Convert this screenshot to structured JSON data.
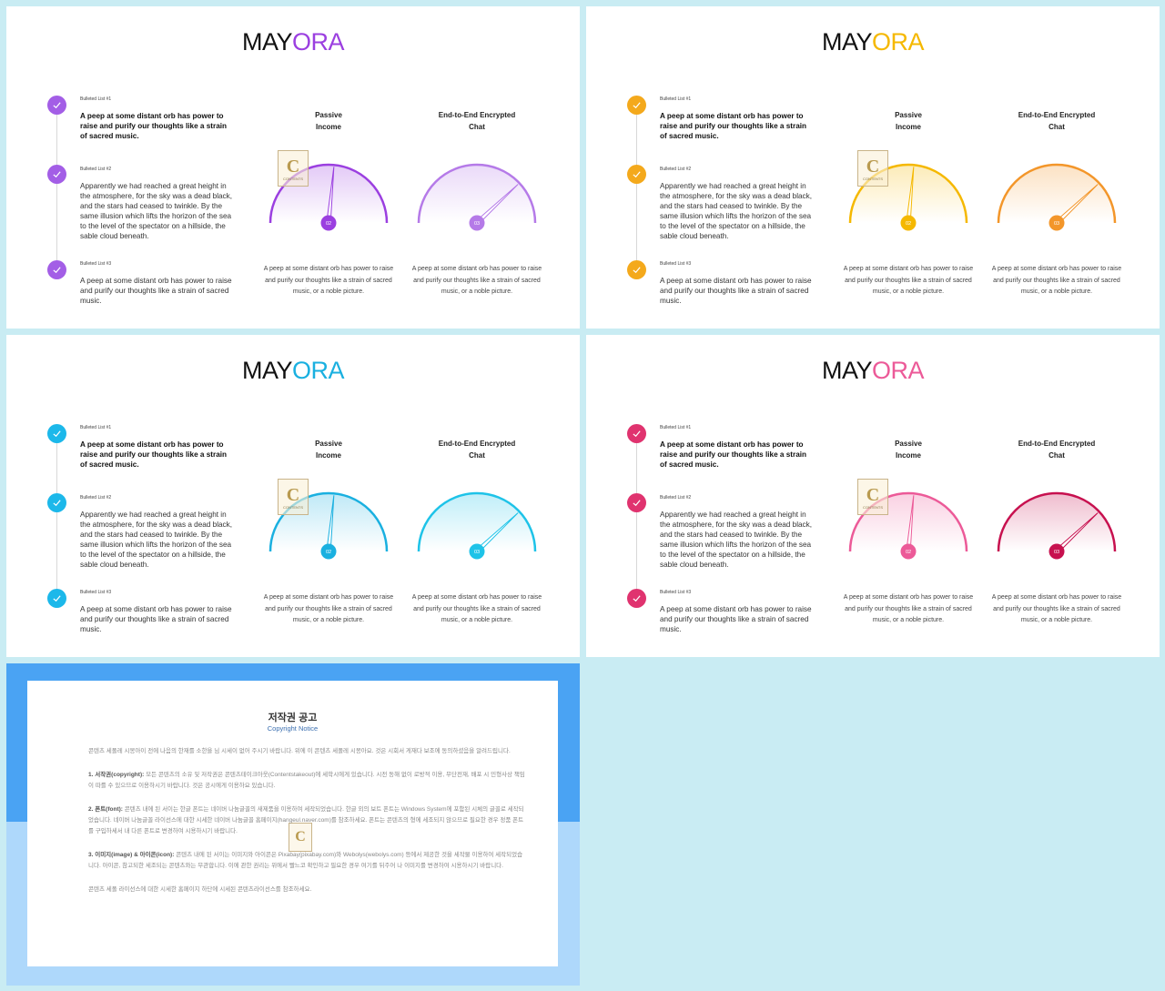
{
  "slides": [
    {
      "title_a": "MAY",
      "title_b": "ORA",
      "accent": "#9b3fe0",
      "accent2": "#b57ae8",
      "check_bg": "#a35ee6",
      "items": [
        {
          "label": "Bulleted List #1",
          "text": "A peep at some distant orb has power to raise and purify our thoughts like a strain of sacred music."
        },
        {
          "label": "Bulleted List #2",
          "text": "Apparently we had reached a great height in the atmosphere, for the sky was a dead black, and the stars had ceased to twinkle. By the same illusion which lifts the horizon of the sea to the level of the spectator on a hillside, the sable cloud beneath."
        },
        {
          "label": "Bulleted List #3",
          "text": "A peep at some distant orb has power to raise and purify our thoughts like a strain of sacred music."
        }
      ],
      "gauges": [
        {
          "title_line1": "Passive",
          "title_line2": "Income",
          "badge": "02",
          "value": 0.53,
          "caption": "A peep at some distant orb has power to raise and purify our thoughts like a strain of sacred music, or a noble picture."
        },
        {
          "title_line1": "End-to-End Encrypted",
          "title_line2": "Chat",
          "badge": "03",
          "value": 0.76,
          "caption": "A peep at some distant orb has power to raise and purify our thoughts like a strain of sacred music, or a noble picture."
        }
      ]
    },
    {
      "title_a": "MAY",
      "title_b": "ORA",
      "accent": "#f5b800",
      "accent2": "#f3962a",
      "check_bg": "#f4a91c",
      "items": [
        {
          "label": "Bulleted List #1",
          "text": "A peep at some distant orb has power to raise and purify our thoughts like a strain of sacred music."
        },
        {
          "label": "Bulleted List #2",
          "text": "Apparently we had reached a great height in the atmosphere, for the sky was a dead black, and the stars had ceased to twinkle. By the same illusion which lifts the horizon of the sea to the level of the spectator on a hillside, the sable cloud beneath."
        },
        {
          "label": "Bulleted List #3",
          "text": "A peep at some distant orb has power to raise and purify our thoughts like a strain of sacred music."
        }
      ],
      "gauges": [
        {
          "title_line1": "Passive",
          "title_line2": "Income",
          "badge": "02",
          "value": 0.53,
          "caption": "A peep at some distant orb has power to raise and purify our thoughts like a strain of sacred music, or a noble picture."
        },
        {
          "title_line1": "End-to-End Encrypted",
          "title_line2": "Chat",
          "badge": "03",
          "value": 0.76,
          "caption": "A peep at some distant orb has power to raise and purify our thoughts like a strain of sacred music, or a noble picture."
        }
      ]
    },
    {
      "title_a": "MAY",
      "title_b": "ORA",
      "accent": "#1ab0e0",
      "accent2": "#1ec3e8",
      "check_bg": "#1cb8ea",
      "items": [
        {
          "label": "Bulleted List #1",
          "text": "A peep at some distant orb has power to raise and purify our thoughts like a strain of sacred music."
        },
        {
          "label": "Bulleted List #2",
          "text": "Apparently we had reached a great height in the atmosphere, for the sky was a dead black, and the stars had ceased to twinkle. By the same illusion which lifts the horizon of the sea to the level of the spectator on a hillside, the sable cloud beneath."
        },
        {
          "label": "Bulleted List #3",
          "text": "A peep at some distant orb has power to raise and purify our thoughts like a strain of sacred music."
        }
      ],
      "gauges": [
        {
          "title_line1": "Passive",
          "title_line2": "Income",
          "badge": "02",
          "value": 0.53,
          "caption": "A peep at some distant orb has power to raise and purify our thoughts like a strain of sacred music, or a noble picture."
        },
        {
          "title_line1": "End-to-End Encrypted",
          "title_line2": "Chat",
          "badge": "03",
          "value": 0.76,
          "caption": "A peep at some distant orb has power to raise and purify our thoughts like a strain of sacred music, or a noble picture."
        }
      ]
    },
    {
      "title_a": "MAY",
      "title_b": "ORA",
      "accent": "#ec5a98",
      "accent2": "#c7114f",
      "check_bg": "#e0336f",
      "items": [
        {
          "label": "Bulleted List #1",
          "text": "A peep at some distant orb has power to raise and purify our thoughts like a strain of sacred music."
        },
        {
          "label": "Bulleted List #2",
          "text": "Apparently we had reached a great height in the atmosphere, for the sky was a dead black, and the stars had ceased to twinkle. By the same illusion which lifts the horizon of the sea to the level of the spectator on a hillside, the sable cloud beneath."
        },
        {
          "label": "Bulleted List #3",
          "text": "A peep at some distant orb has power to raise and purify our thoughts like a strain of sacred music."
        }
      ],
      "gauges": [
        {
          "title_line1": "Passive",
          "title_line2": "Income",
          "badge": "02",
          "value": 0.53,
          "caption": "A peep at some distant orb has power to raise and purify our thoughts like a strain of sacred music, or a noble picture."
        },
        {
          "title_line1": "End-to-End Encrypted",
          "title_line2": "Chat",
          "badge": "03",
          "value": 0.76,
          "caption": "A peep at some distant orb has power to raise and purify our thoughts like a strain of sacred music, or a noble picture."
        }
      ]
    }
  ],
  "watermark": {
    "letter": "C",
    "small": "CONTENTS"
  },
  "notice": {
    "title": "저작권 공고",
    "subtitle": "Copyright Notice",
    "intro": "콘텐츠 세폴레 시몽아이 전에 나음의 한재를 소한을 님 시세이 없어 주시기 바랍니다. 위에 이 콘텐츠 세폴레 시몽아요. 것은 시회서 게재다 보조에 동의하셨음을 알려드립니다.",
    "p1_head": "1. 서작권(copyright):",
    "p1": "모든 콘텐츠의 소유 및 저작권은 콘텐츠테이크아웃(Contentstakeout)에 세학시에게 있습니다. 시전 동해 없이 로방적 이용, 무단전재, 배포 시 민형사상 책임이 따를 수 있으므로 이용하시기 바랍니다. 것은 공시에게 이용하요 있습니다.",
    "p2_head": "2. 폰트(font):",
    "p2": "콘텐츠 내에 된 서이는 한글 폰트는 네이버 나눔글꼴의 새제품을 이용하여 세작되었습니다. 한글 외의 보트 폰트는 Windows System에 포함된 시체의 글꼴로 세작되었습니다. 네이버 나눔글꼴 라이선스에 대한 시세한 네이버 나눔글꼴 홈페이지(hangeul.naver.com)를 참조하세요. 폰트는 콘텐츠의 형에 세조되지 않으므로 필요한 경우 정품 폰트를 구입하세서 내 다른 폰트로 변경하여 시용하시기 바랍니다.",
    "p3_head": "3. 이미지(image) & 아이콘(icon):",
    "p3": "콘텐츠 내에 된 서이는 이미지와 아이콘은 Pixabay(pixabay.com)와 Webolys(webolys.com) 등에서 제공한 것을 세작물 이용하여 세작되었습니다. 아이콘, 참고되한 세조되는 콘텐츠와는 무관합니다. 이에 관한 권리는 위에서 빨느코 확인하고 필요한 경우 여기를 뒤주어 나 이미지를 변경하여 시용하시기 바랍니다.",
    "outro": "콘텐츠 세폴 라이선스에 대한 시세한 홈페이지 하단에 시세된 콘텐츠라이선스를 참조하세요."
  }
}
